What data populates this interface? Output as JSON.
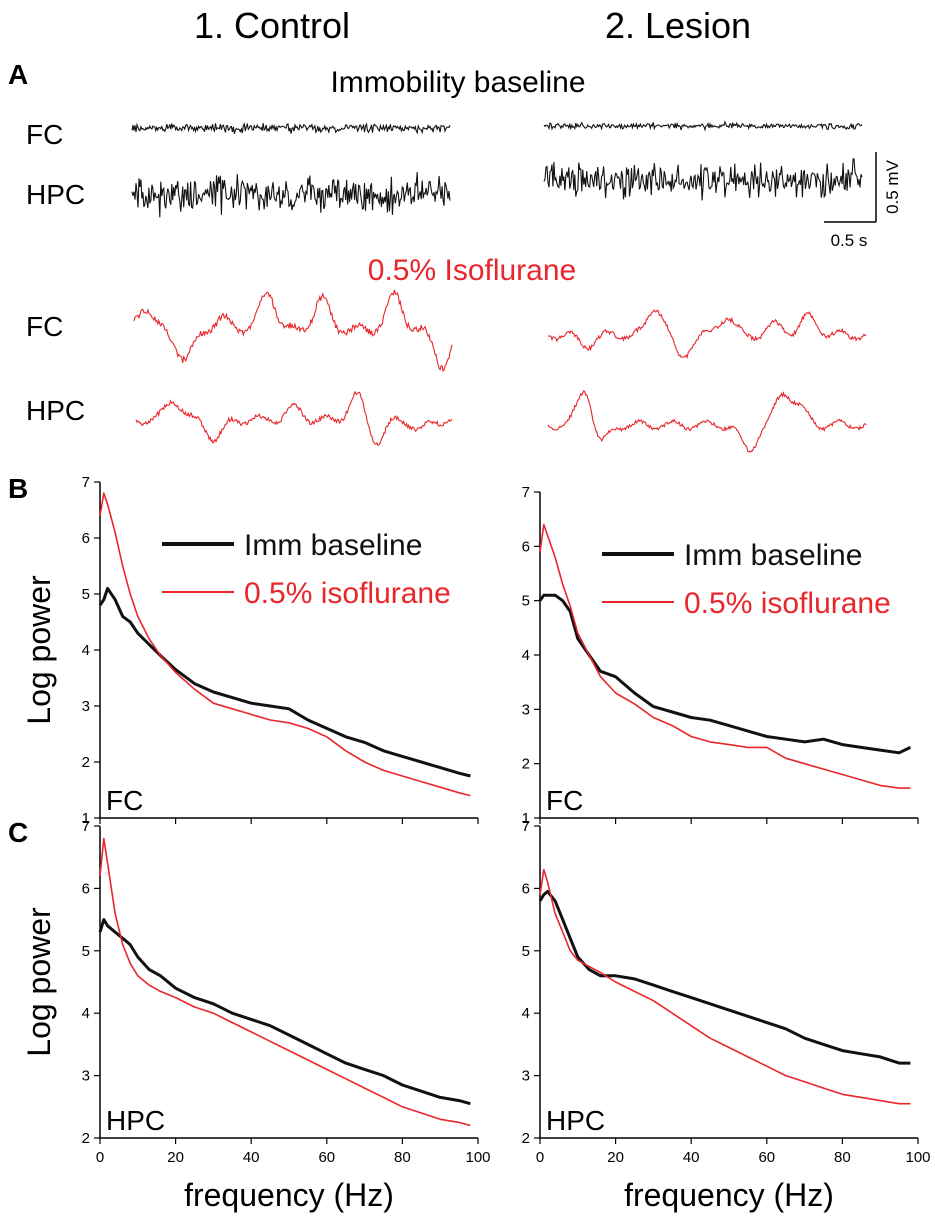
{
  "columns": [
    "1. Control",
    "2. Lesion"
  ],
  "panel_letters": [
    "A",
    "B",
    "C"
  ],
  "traces": {
    "baseline_title": "Immobility baseline",
    "iso_title": "0.5% Isoflurane",
    "row_labels": {
      "fc": "FC",
      "hpc": "HPC"
    },
    "scale_bar": {
      "voltage": "0.5 mV",
      "time": "0.5 s"
    }
  },
  "colors": {
    "baseline": "#111111",
    "isoflurane": "#e8262b"
  },
  "chart_data": [
    {
      "type": "line",
      "panel": "B",
      "column": "1. Control",
      "region": "FC",
      "xlabel": "",
      "ylabel": "Log power",
      "xlim": [
        0,
        100
      ],
      "ylim": [
        1,
        7
      ],
      "xticks": [],
      "yticks": [
        1,
        2,
        3,
        4,
        5,
        6,
        7
      ],
      "legend": "top-right",
      "grid": false,
      "series": [
        {
          "name": "Imm baseline",
          "color": "#111111",
          "x": [
            0,
            1,
            2,
            4,
            6,
            8,
            10,
            13,
            16,
            20,
            25,
            30,
            35,
            40,
            45,
            50,
            55,
            60,
            65,
            70,
            75,
            80,
            85,
            90,
            95,
            98
          ],
          "y": [
            4.8,
            4.9,
            5.1,
            4.9,
            4.6,
            4.5,
            4.3,
            4.1,
            3.9,
            3.65,
            3.4,
            3.25,
            3.15,
            3.05,
            3.0,
            2.95,
            2.75,
            2.6,
            2.45,
            2.35,
            2.2,
            2.1,
            2.0,
            1.9,
            1.8,
            1.75
          ]
        },
        {
          "name": "0.5% isoflurane",
          "color": "#e8262b",
          "x": [
            0,
            1,
            2,
            4,
            6,
            8,
            10,
            13,
            16,
            20,
            25,
            30,
            35,
            40,
            45,
            50,
            55,
            60,
            65,
            70,
            75,
            80,
            85,
            90,
            95,
            98
          ],
          "y": [
            6.4,
            6.8,
            6.6,
            6.1,
            5.5,
            5.0,
            4.6,
            4.2,
            3.9,
            3.6,
            3.3,
            3.05,
            2.95,
            2.85,
            2.75,
            2.7,
            2.6,
            2.45,
            2.2,
            2.0,
            1.85,
            1.75,
            1.65,
            1.55,
            1.45,
            1.4
          ]
        }
      ]
    },
    {
      "type": "line",
      "panel": "B",
      "column": "2. Lesion",
      "region": "FC",
      "xlabel": "",
      "ylabel": "",
      "xlim": [
        0,
        100
      ],
      "ylim": [
        1,
        7
      ],
      "xticks": [],
      "yticks": [
        1,
        2,
        3,
        4,
        5,
        6,
        7
      ],
      "legend": "top-right",
      "grid": false,
      "series": [
        {
          "name": "Imm baseline",
          "color": "#111111",
          "x": [
            0,
            1,
            2,
            4,
            6,
            8,
            10,
            13,
            16,
            20,
            25,
            30,
            35,
            40,
            45,
            50,
            55,
            60,
            65,
            70,
            75,
            80,
            85,
            90,
            95,
            98
          ],
          "y": [
            5.0,
            5.1,
            5.1,
            5.1,
            5.0,
            4.8,
            4.3,
            4.0,
            3.7,
            3.6,
            3.3,
            3.05,
            2.95,
            2.85,
            2.8,
            2.7,
            2.6,
            2.5,
            2.45,
            2.4,
            2.45,
            2.35,
            2.3,
            2.25,
            2.2,
            2.3
          ]
        },
        {
          "name": "0.5% isoflurane",
          "color": "#e8262b",
          "x": [
            0,
            1,
            2,
            4,
            6,
            8,
            10,
            13,
            16,
            20,
            25,
            30,
            35,
            40,
            45,
            50,
            55,
            60,
            65,
            70,
            75,
            80,
            85,
            90,
            95,
            98
          ],
          "y": [
            5.9,
            6.4,
            6.2,
            5.8,
            5.3,
            4.9,
            4.4,
            4.0,
            3.6,
            3.3,
            3.1,
            2.85,
            2.7,
            2.5,
            2.4,
            2.35,
            2.3,
            2.3,
            2.1,
            2.0,
            1.9,
            1.8,
            1.7,
            1.6,
            1.55,
            1.55
          ]
        }
      ]
    },
    {
      "type": "line",
      "panel": "C",
      "column": "1. Control",
      "region": "HPC",
      "xlabel": "frequency (Hz)",
      "ylabel": "Log power",
      "xlim": [
        0,
        100
      ],
      "ylim": [
        2,
        7
      ],
      "xticks": [
        0,
        20,
        40,
        60,
        80,
        100
      ],
      "yticks": [
        2,
        3,
        4,
        5,
        6,
        7
      ],
      "legend": "none",
      "grid": false,
      "series": [
        {
          "name": "Imm baseline",
          "color": "#111111",
          "x": [
            0,
            1,
            2,
            4,
            6,
            8,
            10,
            13,
            16,
            20,
            25,
            30,
            35,
            40,
            45,
            50,
            55,
            60,
            65,
            70,
            75,
            80,
            85,
            90,
            95,
            98
          ],
          "y": [
            5.3,
            5.5,
            5.4,
            5.3,
            5.2,
            5.1,
            4.9,
            4.7,
            4.6,
            4.4,
            4.25,
            4.15,
            4.0,
            3.9,
            3.8,
            3.65,
            3.5,
            3.35,
            3.2,
            3.1,
            3.0,
            2.85,
            2.75,
            2.65,
            2.6,
            2.55
          ]
        },
        {
          "name": "0.5% isoflurane",
          "color": "#e8262b",
          "x": [
            0,
            1,
            2,
            4,
            6,
            8,
            10,
            13,
            16,
            20,
            25,
            30,
            35,
            40,
            45,
            50,
            55,
            60,
            65,
            70,
            75,
            80,
            85,
            90,
            95,
            98
          ],
          "y": [
            6.2,
            6.8,
            6.4,
            5.6,
            5.1,
            4.8,
            4.6,
            4.45,
            4.35,
            4.25,
            4.1,
            4.0,
            3.85,
            3.7,
            3.55,
            3.4,
            3.25,
            3.1,
            2.95,
            2.8,
            2.65,
            2.5,
            2.4,
            2.3,
            2.25,
            2.2
          ]
        }
      ]
    },
    {
      "type": "line",
      "panel": "C",
      "column": "2. Lesion",
      "region": "HPC",
      "xlabel": "frequency (Hz)",
      "ylabel": "",
      "xlim": [
        0,
        100
      ],
      "ylim": [
        2,
        7
      ],
      "xticks": [
        0,
        20,
        40,
        60,
        80,
        100
      ],
      "yticks": [
        2,
        3,
        4,
        5,
        6,
        7
      ],
      "legend": "none",
      "grid": false,
      "series": [
        {
          "name": "Imm baseline",
          "color": "#111111",
          "x": [
            0,
            1,
            2,
            4,
            6,
            8,
            10,
            13,
            16,
            20,
            25,
            30,
            35,
            40,
            45,
            50,
            55,
            60,
            65,
            70,
            75,
            80,
            85,
            90,
            95,
            98
          ],
          "y": [
            5.8,
            5.9,
            5.95,
            5.8,
            5.5,
            5.2,
            4.9,
            4.7,
            4.6,
            4.6,
            4.55,
            4.45,
            4.35,
            4.25,
            4.15,
            4.05,
            3.95,
            3.85,
            3.75,
            3.6,
            3.5,
            3.4,
            3.35,
            3.3,
            3.2,
            3.2
          ]
        },
        {
          "name": "0.5% isoflurane",
          "color": "#e8262b",
          "x": [
            0,
            1,
            2,
            4,
            6,
            8,
            10,
            13,
            16,
            20,
            25,
            30,
            35,
            40,
            45,
            50,
            55,
            60,
            65,
            70,
            75,
            80,
            85,
            90,
            95,
            98
          ],
          "y": [
            5.9,
            6.3,
            6.1,
            5.6,
            5.3,
            5.0,
            4.85,
            4.75,
            4.65,
            4.5,
            4.35,
            4.2,
            4.0,
            3.8,
            3.6,
            3.45,
            3.3,
            3.15,
            3.0,
            2.9,
            2.8,
            2.7,
            2.65,
            2.6,
            2.55,
            2.55
          ]
        }
      ]
    }
  ]
}
